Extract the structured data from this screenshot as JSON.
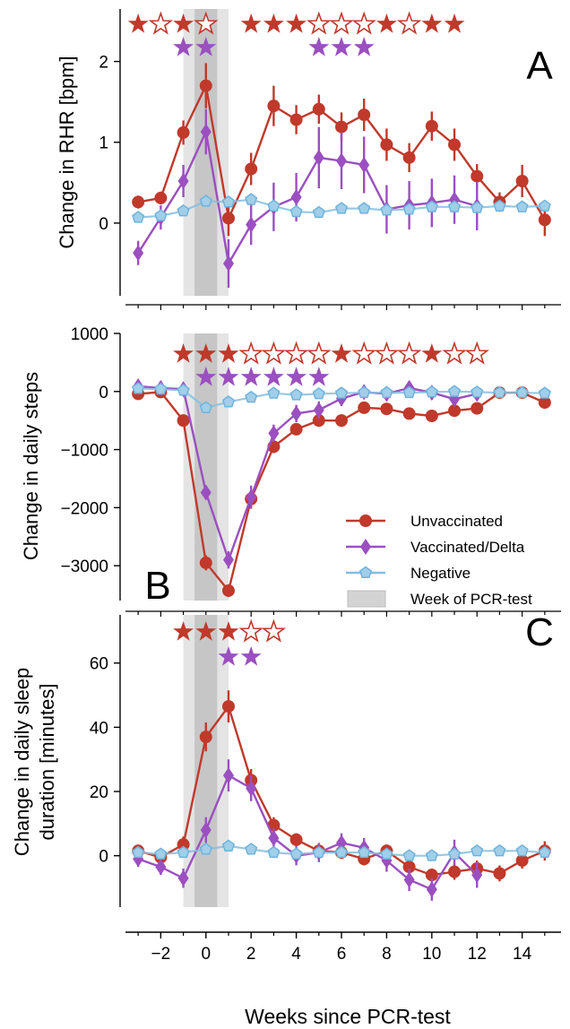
{
  "chart_data": [
    {
      "panel_letter": "A",
      "type": "line",
      "ylabel": "Change in RHR [bpm]",
      "xlabel": "",
      "xlim": [
        -3.8,
        15.8
      ],
      "ylim": [
        -0.9,
        2.65
      ],
      "yticks": [
        0,
        1,
        2
      ],
      "ytick_labels": [
        "0",
        "1",
        "2"
      ],
      "test_week_band": {
        "outer": [
          -1,
          1
        ],
        "inner": [
          -0.5,
          0.5
        ]
      },
      "series": [
        {
          "name": "Unvaccinated",
          "color": "#c0392b",
          "marker": "circle",
          "x": [
            -3,
            -2,
            -1,
            0,
            1,
            2,
            3,
            4,
            5,
            6,
            7,
            8,
            9,
            10,
            11,
            12,
            13,
            14,
            15
          ],
          "y": [
            0.26,
            0.31,
            1.12,
            1.7,
            0.06,
            0.67,
            1.45,
            1.28,
            1.41,
            1.19,
            1.34,
            0.97,
            0.81,
            1.2,
            0.97,
            0.58,
            0.26,
            0.52,
            0.04
          ],
          "err": [
            0.08,
            0.08,
            0.15,
            0.28,
            0.22,
            0.2,
            0.25,
            0.18,
            0.18,
            0.18,
            0.2,
            0.2,
            0.18,
            0.18,
            0.2,
            0.15,
            0.12,
            0.2,
            0.2
          ]
        },
        {
          "name": "Vaccinated/Delta",
          "color": "#9b4fc0",
          "marker": "diamond",
          "x": [
            -3,
            -2,
            -1,
            0,
            1,
            2,
            3,
            4,
            5,
            6,
            7,
            8,
            9,
            10,
            11,
            12
          ],
          "y": [
            -0.37,
            0.07,
            0.52,
            1.13,
            -0.5,
            -0.02,
            0.2,
            0.32,
            0.81,
            0.77,
            0.72,
            0.17,
            0.22,
            0.25,
            0.29,
            0.21
          ],
          "err": [
            0.15,
            0.15,
            0.2,
            0.28,
            0.3,
            0.25,
            0.3,
            0.3,
            0.38,
            0.35,
            0.35,
            0.3,
            0.3,
            0.3,
            0.3,
            0.3
          ]
        },
        {
          "name": "Negative",
          "color": "#6fb3dc",
          "marker": "pentagon",
          "x": [
            -3,
            -2,
            -1,
            0,
            1,
            2,
            3,
            4,
            5,
            6,
            7,
            8,
            9,
            10,
            11,
            12,
            13,
            14,
            15
          ],
          "y": [
            0.07,
            0.09,
            0.15,
            0.27,
            0.26,
            0.29,
            0.21,
            0.14,
            0.13,
            0.18,
            0.18,
            0.16,
            0.17,
            0.2,
            0.2,
            0.19,
            0.21,
            0.2,
            0.21
          ],
          "err": [
            0.05,
            0.05,
            0.05,
            0.05,
            0.05,
            0.05,
            0.05,
            0.05,
            0.05,
            0.05,
            0.05,
            0.05,
            0.05,
            0.05,
            0.05,
            0.05,
            0.05,
            0.05,
            0.05
          ]
        }
      ],
      "star_rows": [
        {
          "color": "#c0392b",
          "marks": [
            {
              "x": -3,
              "filled": true
            },
            {
              "x": -2,
              "filled": false
            },
            {
              "x": -1,
              "filled": true
            },
            {
              "x": 0,
              "filled": false
            },
            {
              "x": 2,
              "filled": true
            },
            {
              "x": 3,
              "filled": true
            },
            {
              "x": 4,
              "filled": true
            },
            {
              "x": 5,
              "filled": false
            },
            {
              "x": 6,
              "filled": false
            },
            {
              "x": 7,
              "filled": false
            },
            {
              "x": 8,
              "filled": true
            },
            {
              "x": 9,
              "filled": false
            },
            {
              "x": 10,
              "filled": true
            },
            {
              "x": 11,
              "filled": true
            }
          ]
        },
        {
          "color": "#9b4fc0",
          "marks": [
            {
              "x": -1,
              "filled": true
            },
            {
              "x": 0,
              "filled": true
            },
            {
              "x": 5,
              "filled": true
            },
            {
              "x": 6,
              "filled": true
            },
            {
              "x": 7,
              "filled": true
            }
          ]
        }
      ]
    },
    {
      "panel_letter": "B",
      "type": "line",
      "ylabel": "Change in daily steps",
      "xlabel": "",
      "xlim": [
        -3.8,
        15.8
      ],
      "ylim": [
        -3600,
        1000
      ],
      "yticks": [
        1000,
        0,
        -1000,
        -2000,
        -3000
      ],
      "ytick_labels": [
        "1000",
        "0",
        "−1000",
        "−2000",
        "−3000"
      ],
      "test_week_band": {
        "outer": [
          -1,
          1
        ],
        "inner": [
          -0.5,
          0.5
        ]
      },
      "series": [
        {
          "name": "Unvaccinated",
          "color": "#c0392b",
          "marker": "circle",
          "x": [
            -3,
            -2,
            -1,
            0,
            1,
            2,
            3,
            4,
            5,
            6,
            7,
            8,
            9,
            10,
            11,
            12,
            13,
            14,
            15
          ],
          "y": [
            -40,
            -10,
            -500,
            -2950,
            -3430,
            -1850,
            -950,
            -650,
            -500,
            -500,
            -280,
            -300,
            -380,
            -420,
            -330,
            -290,
            -20,
            -20,
            -190
          ],
          "err": [
            60,
            60,
            100,
            130,
            110,
            130,
            110,
            80,
            70,
            70,
            60,
            60,
            60,
            60,
            60,
            60,
            60,
            60,
            60
          ]
        },
        {
          "name": "Vaccinated/Delta",
          "color": "#9b4fc0",
          "marker": "diamond",
          "x": [
            -3,
            -2,
            -1,
            0,
            1,
            2,
            3,
            4,
            5,
            6,
            7,
            8,
            9,
            10,
            11,
            12
          ],
          "y": [
            90,
            60,
            40,
            -1740,
            -2900,
            -1820,
            -720,
            -380,
            -320,
            -120,
            -10,
            -40,
            60,
            -20,
            -130,
            -40
          ],
          "err": [
            60,
            60,
            60,
            120,
            150,
            200,
            150,
            150,
            150,
            130,
            120,
            120,
            120,
            120,
            120,
            120
          ]
        },
        {
          "name": "Negative",
          "color": "#6fb3dc",
          "marker": "pentagon",
          "x": [
            -3,
            -2,
            -1,
            0,
            1,
            2,
            3,
            4,
            5,
            6,
            7,
            8,
            9,
            10,
            11,
            12,
            13,
            14,
            15
          ],
          "y": [
            50,
            40,
            20,
            -280,
            -180,
            -100,
            -30,
            -60,
            -40,
            -30,
            -20,
            -20,
            -20,
            -10,
            0,
            -10,
            -20,
            -20,
            -30
          ],
          "err": [
            30,
            30,
            30,
            40,
            40,
            30,
            30,
            30,
            30,
            30,
            30,
            30,
            30,
            30,
            30,
            30,
            30,
            30,
            30
          ]
        }
      ],
      "star_rows": [
        {
          "color": "#c0392b",
          "marks": [
            {
              "x": -1,
              "filled": true
            },
            {
              "x": 0,
              "filled": true
            },
            {
              "x": 1,
              "filled": true
            },
            {
              "x": 2,
              "filled": false
            },
            {
              "x": 3,
              "filled": false
            },
            {
              "x": 4,
              "filled": false
            },
            {
              "x": 5,
              "filled": false
            },
            {
              "x": 6,
              "filled": true
            },
            {
              "x": 7,
              "filled": false
            },
            {
              "x": 8,
              "filled": false
            },
            {
              "x": 9,
              "filled": false
            },
            {
              "x": 10,
              "filled": true
            },
            {
              "x": 11,
              "filled": false
            },
            {
              "x": 12,
              "filled": false
            }
          ]
        },
        {
          "color": "#9b4fc0",
          "marks": [
            {
              "x": 0,
              "filled": true
            },
            {
              "x": 1,
              "filled": true
            },
            {
              "x": 2,
              "filled": true
            },
            {
              "x": 3,
              "filled": true
            },
            {
              "x": 4,
              "filled": true
            },
            {
              "x": 5,
              "filled": true
            }
          ]
        }
      ],
      "legend": {
        "placement": "lower-right",
        "entries": [
          "Unvaccinated",
          "Vaccinated/Delta",
          "Negative",
          "Week of PCR-test"
        ]
      }
    },
    {
      "panel_letter": "C",
      "type": "line",
      "ylabel_lines": [
        "Change in daily sleep",
        "duration [minutes]"
      ],
      "xlabel": "Weeks since PCR-test",
      "xlim": [
        -3.8,
        15.8
      ],
      "ylim": [
        -16,
        75
      ],
      "yticks": [
        0,
        20,
        40,
        60
      ],
      "ytick_labels": [
        "0",
        "20",
        "40",
        "60"
      ],
      "xticks": [
        -2,
        0,
        2,
        4,
        6,
        8,
        10,
        12,
        14
      ],
      "xtick_labels": [
        "−2",
        "0",
        "2",
        "4",
        "6",
        "8",
        "10",
        "12",
        "14"
      ],
      "test_week_band": {
        "outer": [
          -1,
          1
        ],
        "inner": [
          -0.5,
          0.5
        ]
      },
      "series": [
        {
          "name": "Unvaccinated",
          "color": "#c0392b",
          "marker": "circle",
          "x": [
            -3,
            -2,
            -1,
            0,
            1,
            2,
            3,
            4,
            5,
            6,
            7,
            8,
            9,
            10,
            11,
            12,
            13,
            14,
            15
          ],
          "y": [
            1.5,
            -0.5,
            3.5,
            37,
            46.5,
            23.5,
            9.5,
            5,
            1.5,
            1,
            -1,
            1.5,
            -3.5,
            -6,
            -5,
            -4,
            -5.5,
            -1.5,
            1.5
          ],
          "err": [
            2,
            2,
            2.5,
            4.5,
            5,
            3.5,
            2.5,
            2,
            2,
            2,
            2,
            2,
            2,
            2,
            2.5,
            2.5,
            2.5,
            2.5,
            3
          ]
        },
        {
          "name": "Vaccinated/Delta",
          "color": "#9b4fc0",
          "marker": "diamond",
          "x": [
            -3,
            -2,
            -1,
            0,
            1,
            2,
            3,
            4,
            5,
            6,
            7,
            8,
            9,
            10,
            11,
            12
          ],
          "y": [
            -1,
            -3.5,
            -7,
            8,
            25,
            21,
            5.5,
            0,
            1,
            4,
            2.5,
            -1.5,
            -7.5,
            -10.5,
            1,
            -6
          ],
          "err": [
            2.5,
            2.5,
            3,
            4,
            5,
            4,
            3,
            3,
            3,
            3,
            3,
            3.5,
            3.5,
            3.5,
            4,
            4
          ]
        },
        {
          "name": "Negative",
          "color": "#6fb3dc",
          "marker": "pentagon",
          "x": [
            -3,
            -2,
            -1,
            0,
            1,
            2,
            3,
            4,
            5,
            6,
            7,
            8,
            9,
            10,
            11,
            12,
            13,
            14,
            15
          ],
          "y": [
            1,
            0.5,
            1,
            2,
            3,
            2,
            1,
            0.5,
            1,
            1,
            1,
            0.5,
            0,
            0,
            0.5,
            1.5,
            1.5,
            1.5,
            1
          ],
          "err": [
            1,
            1,
            1,
            1,
            1,
            1,
            1,
            1,
            1,
            1,
            1,
            1,
            1,
            1,
            1,
            1,
            1,
            1,
            1
          ]
        }
      ],
      "star_rows": [
        {
          "color": "#c0392b",
          "marks": [
            {
              "x": -1,
              "filled": true
            },
            {
              "x": 0,
              "filled": true
            },
            {
              "x": 1,
              "filled": true
            },
            {
              "x": 2,
              "filled": false
            },
            {
              "x": 3,
              "filled": false
            }
          ]
        },
        {
          "color": "#9b4fc0",
          "marks": [
            {
              "x": 1,
              "filled": true
            },
            {
              "x": 2,
              "filled": true
            }
          ]
        }
      ]
    }
  ]
}
